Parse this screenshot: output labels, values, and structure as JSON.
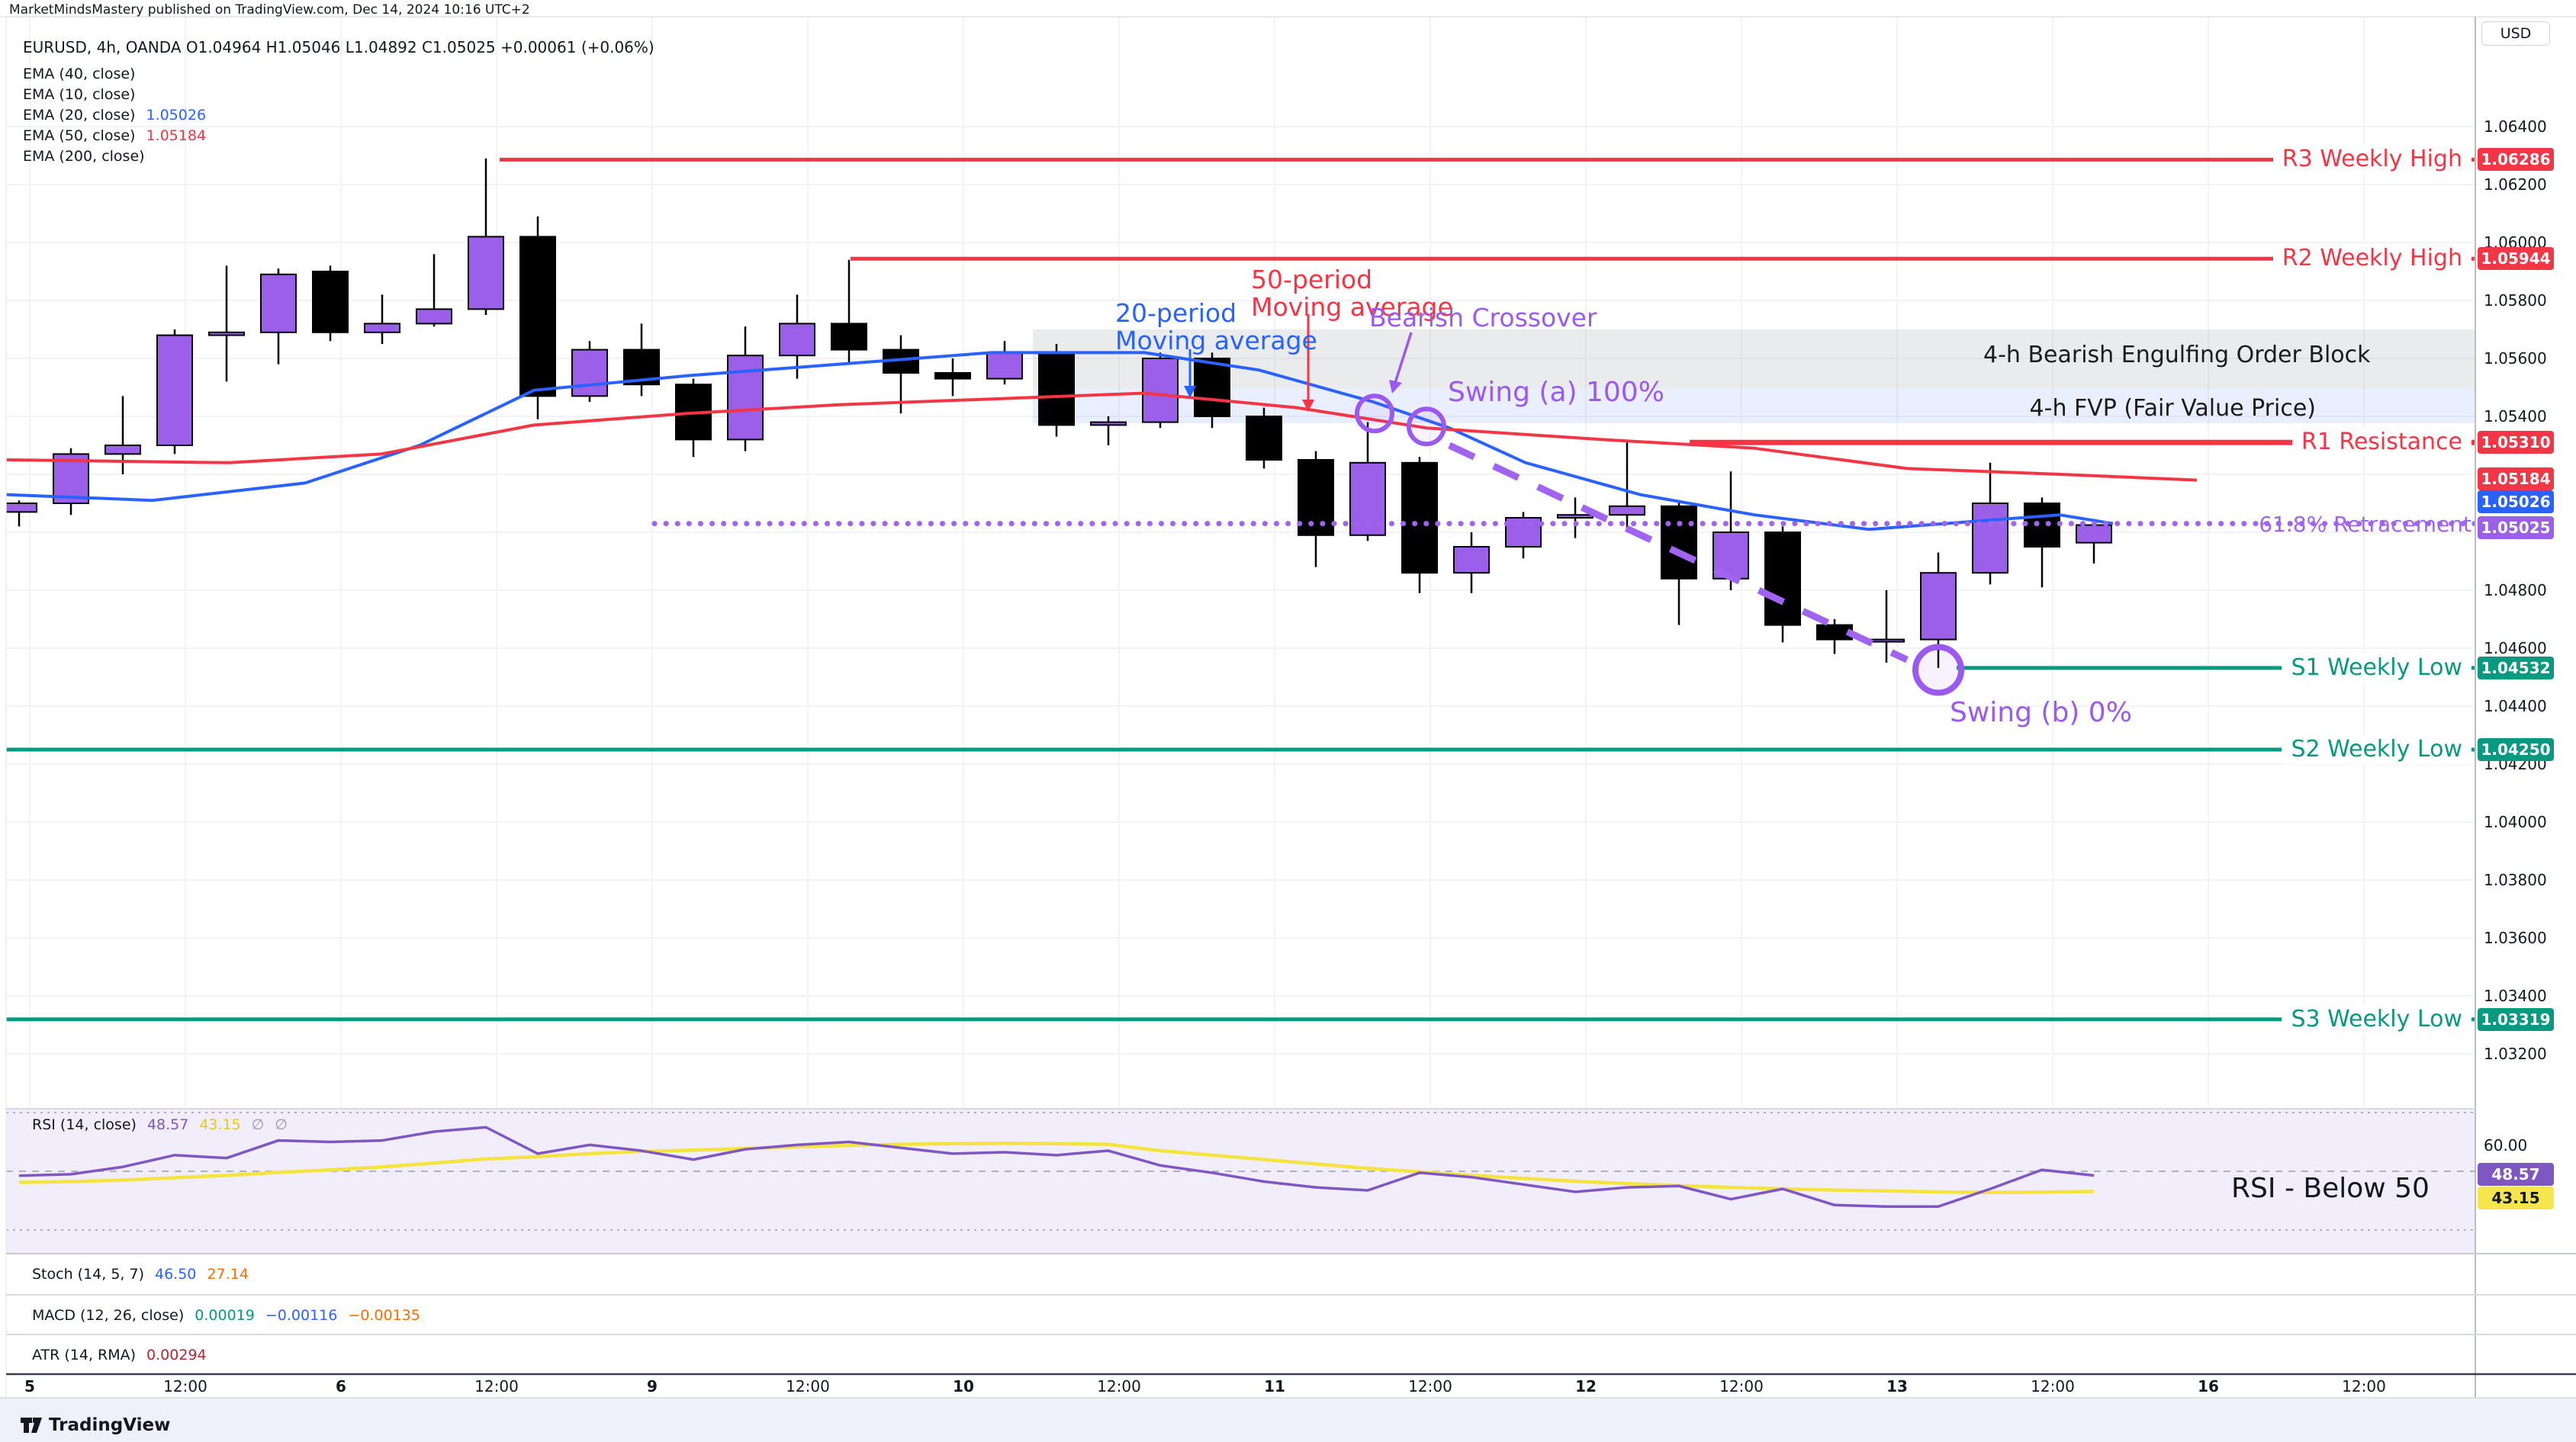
{
  "attribution": "MarketMindsMastery published on TradingView.com, Dec 14, 2024 10:16 UTC+2",
  "header": {
    "symbol_line": "EURUSD, 4h, OANDA   O1.04964   H1.05046   L1.04892   C1.05025   +0.00061 (+0.06%)"
  },
  "legend": {
    "rows": [
      {
        "label": "EMA (40, close)",
        "value": "",
        "color": "#131722"
      },
      {
        "label": "EMA (10, close)",
        "value": "",
        "color": "#131722"
      },
      {
        "label": "EMA (20, close)",
        "value": "1.05026",
        "color": "#2962ff"
      },
      {
        "label": "EMA (50, close)",
        "value": "1.05184",
        "color": "#f23645"
      },
      {
        "label": "EMA (200, close)",
        "value": "",
        "color": "#131722"
      }
    ]
  },
  "price_axis": {
    "currency": "USD",
    "ticks": [
      "1.06400",
      "1.06200",
      "1.06000",
      "1.05800",
      "1.05600",
      "1.05400",
      "1.04800",
      "1.04600",
      "1.04400",
      "1.04200",
      "1.04000",
      "1.03800",
      "1.03600",
      "1.03400",
      "1.03200"
    ],
    "extra_badges": [
      {
        "text": "1.05184",
        "y": 628,
        "bg": "#f23645",
        "fg": "#ffffff"
      },
      {
        "text": "1.05026",
        "y": 658,
        "bg": "#2962ff",
        "fg": "#ffffff"
      },
      {
        "text": "1.05025",
        "y": 692,
        "bg": "#9c5fe8",
        "fg": "#ffffff"
      }
    ]
  },
  "annotations": {
    "ma20_line1": "20-period",
    "ma20_line2": "Moving average",
    "ma50_line1": "50-period",
    "ma50_line2": "Moving average",
    "crossover": "Bearish Crossover",
    "swing_a": "Swing (a) 100%",
    "swing_b": "Swing (b) 0%",
    "order_block": "4-h Bearish Engulfing Order Block",
    "fvp": "4-h FVP (Fair Value Price)",
    "retracement": "61.8% Retracement",
    "rsi_note": "RSI - Below 50"
  },
  "indicators": {
    "rsi": {
      "label": "RSI (14, close)",
      "values": [
        {
          "t": "48.57",
          "c": "#7e57c2"
        },
        {
          "t": "43.15",
          "c": "#e0ca1e"
        },
        {
          "t": "∅",
          "c": "#9598a1"
        },
        {
          "t": "∅",
          "c": "#9598a1"
        }
      ],
      "axis_tick": "60.00",
      "badges": [
        {
          "t": "48.57",
          "bg": "#7e57c2",
          "fg": "#ffffff"
        },
        {
          "t": "43.15",
          "bg": "#f6e54c",
          "fg": "#131722"
        }
      ]
    },
    "stoch": {
      "label": "Stoch (14, 5, 7)",
      "values": [
        {
          "t": "46.50",
          "c": "#2962ff"
        },
        {
          "t": "27.14",
          "c": "#ff6d00"
        }
      ]
    },
    "macd": {
      "label": "MACD (12, 26, close)",
      "values": [
        {
          "t": "0.00019",
          "c": "#089981"
        },
        {
          "t": "−0.00116",
          "c": "#2962ff"
        },
        {
          "t": "−0.00135",
          "c": "#ff6d00"
        }
      ]
    },
    "atr": {
      "label": "ATR (14, RMA)",
      "values": [
        {
          "t": "0.00294",
          "c": "#b22833"
        }
      ]
    }
  },
  "footer": {
    "logo_text": "TradingView"
  },
  "chart_data": {
    "type": "candlestick",
    "title": "EURUSD 4h OANDA with EMA20/EMA50, weekly S/R levels, Fibonacci retracement and RSI",
    "symbol": "EURUSD",
    "timeframe": "4h",
    "exchange": "OANDA",
    "ylim": [
      1.032,
      1.065
    ],
    "grid": true,
    "up_color": "#9c5fe8",
    "down_color": "#000000",
    "candles": [
      {
        "o": 1.0507,
        "h": 1.0511,
        "l": 1.0502,
        "c": 1.051
      },
      {
        "o": 1.051,
        "h": 1.0529,
        "l": 1.0506,
        "c": 1.0527
      },
      {
        "o": 1.0527,
        "h": 1.0547,
        "l": 1.052,
        "c": 1.053
      },
      {
        "o": 1.053,
        "h": 1.057,
        "l": 1.0527,
        "c": 1.0568
      },
      {
        "o": 1.0568,
        "h": 1.0592,
        "l": 1.0552,
        "c": 1.0569
      },
      {
        "o": 1.0569,
        "h": 1.0591,
        "l": 1.0558,
        "c": 1.0589
      },
      {
        "o": 1.059,
        "h": 1.0592,
        "l": 1.0566,
        "c": 1.0569
      },
      {
        "o": 1.0569,
        "h": 1.0582,
        "l": 1.0565,
        "c": 1.0572
      },
      {
        "o": 1.0572,
        "h": 1.0596,
        "l": 1.0571,
        "c": 1.0577
      },
      {
        "o": 1.0577,
        "h": 1.0629,
        "l": 1.0575,
        "c": 1.0602
      },
      {
        "o": 1.0602,
        "h": 1.0609,
        "l": 1.0539,
        "c": 1.0547
      },
      {
        "o": 1.0547,
        "h": 1.0566,
        "l": 1.0545,
        "c": 1.0563
      },
      {
        "o": 1.0563,
        "h": 1.0572,
        "l": 1.0547,
        "c": 1.0551
      },
      {
        "o": 1.0551,
        "h": 1.0553,
        "l": 1.0526,
        "c": 1.0532
      },
      {
        "o": 1.0532,
        "h": 1.0571,
        "l": 1.0528,
        "c": 1.0561
      },
      {
        "o": 1.0561,
        "h": 1.0582,
        "l": 1.0553,
        "c": 1.0572
      },
      {
        "o": 1.0572,
        "h": 1.0594,
        "l": 1.0558,
        "c": 1.0563
      },
      {
        "o": 1.0563,
        "h": 1.0568,
        "l": 1.0541,
        "c": 1.0555
      },
      {
        "o": 1.0555,
        "h": 1.056,
        "l": 1.0547,
        "c": 1.0553
      },
      {
        "o": 1.0553,
        "h": 1.0566,
        "l": 1.0551,
        "c": 1.0562
      },
      {
        "o": 1.0562,
        "h": 1.0565,
        "l": 1.0533,
        "c": 1.0537
      },
      {
        "o": 1.0537,
        "h": 1.054,
        "l": 1.053,
        "c": 1.0538
      },
      {
        "o": 1.0538,
        "h": 1.0562,
        "l": 1.0536,
        "c": 1.056
      },
      {
        "o": 1.056,
        "h": 1.0562,
        "l": 1.0536,
        "c": 1.054
      },
      {
        "o": 1.054,
        "h": 1.0543,
        "l": 1.0522,
        "c": 1.0525
      },
      {
        "o": 1.0525,
        "h": 1.0528,
        "l": 1.0488,
        "c": 1.0499
      },
      {
        "o": 1.0499,
        "h": 1.0538,
        "l": 1.0497,
        "c": 1.0524
      },
      {
        "o": 1.0524,
        "h": 1.0526,
        "l": 1.0479,
        "c": 1.0486
      },
      {
        "o": 1.0486,
        "h": 1.05,
        "l": 1.0479,
        "c": 1.0495
      },
      {
        "o": 1.0495,
        "h": 1.0507,
        "l": 1.0491,
        "c": 1.0505
      },
      {
        "o": 1.0505,
        "h": 1.0512,
        "l": 1.0498,
        "c": 1.0506
      },
      {
        "o": 1.0506,
        "h": 1.0531,
        "l": 1.0501,
        "c": 1.0509
      },
      {
        "o": 1.0509,
        "h": 1.0511,
        "l": 1.0468,
        "c": 1.0484
      },
      {
        "o": 1.0484,
        "h": 1.0521,
        "l": 1.048,
        "c": 1.05
      },
      {
        "o": 1.05,
        "h": 1.0502,
        "l": 1.0462,
        "c": 1.0468
      },
      {
        "o": 1.0468,
        "h": 1.047,
        "l": 1.0458,
        "c": 1.0463
      },
      {
        "o": 1.0463,
        "h": 1.048,
        "l": 1.0455,
        "c": 1.0463
      },
      {
        "o": 1.0463,
        "h": 1.0493,
        "l": 1.04532,
        "c": 1.0486
      },
      {
        "o": 1.0486,
        "h": 1.0524,
        "l": 1.0482,
        "c": 1.051
      },
      {
        "o": 1.051,
        "h": 1.0512,
        "l": 1.0481,
        "c": 1.0495
      },
      {
        "o": 1.04964,
        "h": 1.05046,
        "l": 1.04892,
        "c": 1.05025
      }
    ],
    "ema20_points": [
      [
        8,
        1.0513
      ],
      [
        200,
        1.0511
      ],
      [
        400,
        1.0517
      ],
      [
        550,
        1.053
      ],
      [
        700,
        1.0549
      ],
      [
        900,
        1.0554
      ],
      [
        1100,
        1.0558
      ],
      [
        1300,
        1.0562
      ],
      [
        1500,
        1.0562
      ],
      [
        1650,
        1.0556
      ],
      [
        1800,
        1.0545
      ],
      [
        1900,
        1.0536
      ],
      [
        2000,
        1.0524
      ],
      [
        2150,
        1.0513
      ],
      [
        2300,
        1.0506
      ],
      [
        2450,
        1.0501
      ],
      [
        2600,
        1.0504
      ],
      [
        2700,
        1.0506
      ],
      [
        2770,
        1.0503
      ]
    ],
    "ema50_points": [
      [
        8,
        1.0525
      ],
      [
        300,
        1.0524
      ],
      [
        500,
        1.0527
      ],
      [
        700,
        1.0537
      ],
      [
        900,
        1.0541
      ],
      [
        1100,
        1.0544
      ],
      [
        1300,
        1.0546
      ],
      [
        1500,
        1.0548
      ],
      [
        1700,
        1.0543
      ],
      [
        1870,
        1.0536
      ],
      [
        2100,
        1.0532
      ],
      [
        2300,
        1.0529
      ],
      [
        2500,
        1.0522
      ],
      [
        2700,
        1.052
      ],
      [
        2880,
        1.0518
      ]
    ],
    "levels": [
      {
        "id": "r3",
        "label": "R3 Weekly High",
        "price": 1.06286,
        "badge": "1.06286",
        "color": "#f23645",
        "x_start": 655,
        "width": 5
      },
      {
        "id": "r2",
        "label": "R2 Weekly High",
        "price": 1.05944,
        "badge": "1.05944",
        "color": "#f23645",
        "x_start": 1115,
        "width": 5
      },
      {
        "id": "r1",
        "label": "R1 Resistance",
        "price": 1.0531,
        "badge": "1.05310",
        "color": "#f23645",
        "x_start": 2215,
        "width": 7
      },
      {
        "id": "s1",
        "label": "S1 Weekly Low",
        "price": 1.04532,
        "badge": "1.04532",
        "color": "#089981",
        "x_start": 2565,
        "width": 5
      },
      {
        "id": "s2",
        "label": "S2 Weekly Low",
        "price": 1.0425,
        "badge": "1.04250",
        "color": "#089981",
        "x_start": 8,
        "width": 5
      },
      {
        "id": "s3",
        "label": "S3 Weekly Low",
        "price": 1.03319,
        "badge": "1.03319",
        "color": "#089981",
        "x_start": 8,
        "width": 5
      }
    ],
    "bands": [
      {
        "id": "order-block",
        "p_top": 1.057,
        "p_bottom": 1.05495,
        "x_start": 1354,
        "fill": "rgba(140,145,155,0.18)"
      },
      {
        "id": "fvp",
        "p_top": 1.05495,
        "p_bottom": 1.05376,
        "x_start": 1354,
        "fill": "rgba(41,98,255,0.10)"
      }
    ],
    "retracement": {
      "price": 1.0503,
      "x_start": 858,
      "color": "#a164f0"
    },
    "trendline": {
      "x1": 1900,
      "p1": 1.053,
      "x2": 2500,
      "p2": 1.0456,
      "color": "#a164f0"
    },
    "circles": [
      {
        "x": 1802,
        "p": 1.0541,
        "r": 23
      },
      {
        "x": 1870,
        "p": 1.05365,
        "r": 23
      },
      {
        "x": 2541,
        "p": 1.04525,
        "r": 30
      }
    ],
    "time_axis": [
      {
        "t": "5",
        "x": 39,
        "bold": true
      },
      {
        "t": "12:00",
        "x": 243,
        "bold": false
      },
      {
        "t": "6",
        "x": 447,
        "bold": true
      },
      {
        "t": "12:00",
        "x": 651,
        "bold": false
      },
      {
        "t": "9",
        "x": 855,
        "bold": true
      },
      {
        "t": "12:00",
        "x": 1059,
        "bold": false
      },
      {
        "t": "10",
        "x": 1263,
        "bold": true
      },
      {
        "t": "12:00",
        "x": 1467,
        "bold": false
      },
      {
        "t": "11",
        "x": 1671,
        "bold": true
      },
      {
        "t": "12:00",
        "x": 1875,
        "bold": false
      },
      {
        "t": "12",
        "x": 2079,
        "bold": true
      },
      {
        "t": "12:00",
        "x": 2283,
        "bold": false
      },
      {
        "t": "13",
        "x": 2487,
        "bold": true
      },
      {
        "t": "12:00",
        "x": 2691,
        "bold": false
      },
      {
        "t": "16",
        "x": 2895,
        "bold": true
      },
      {
        "t": "12:00",
        "x": 3099,
        "bold": false
      }
    ],
    "price_gridlines": [
      1.064,
      1.062,
      1.06,
      1.058,
      1.056,
      1.054,
      1.052,
      1.05,
      1.048,
      1.046,
      1.044,
      1.042,
      1.04,
      1.038,
      1.036,
      1.034,
      1.032
    ],
    "rsi": {
      "series_color": "#7e57c2",
      "ma_color": "#f5e33f",
      "levels": [
        70,
        50,
        30
      ],
      "values": [
        48.5,
        49,
        51.5,
        55.5,
        54.5,
        60.5,
        60,
        60.5,
        63.5,
        65,
        56,
        59,
        57,
        54,
        57.5,
        59,
        60,
        58,
        56,
        56.5,
        55.5,
        57,
        52,
        49.5,
        46.5,
        44.5,
        43.5,
        49.5,
        48,
        45.5,
        43,
        44.5,
        45,
        40.5,
        44,
        38.5,
        38,
        38,
        44,
        50.5,
        48.57
      ],
      "ma_values": [
        46.2,
        46.5,
        47,
        47.8,
        48.6,
        49.6,
        50.5,
        51.5,
        52.8,
        54.2,
        55,
        56,
        56.8,
        57.2,
        57.8,
        58.3,
        58.8,
        59.2,
        59.4,
        59.5,
        59.4,
        59.2,
        57,
        55.5,
        54,
        52.5,
        51,
        49.8,
        48.6,
        47.6,
        46.6,
        45.8,
        45.1,
        44.5,
        44,
        43.6,
        43.3,
        43,
        42.8,
        42.9,
        43.15
      ]
    }
  }
}
